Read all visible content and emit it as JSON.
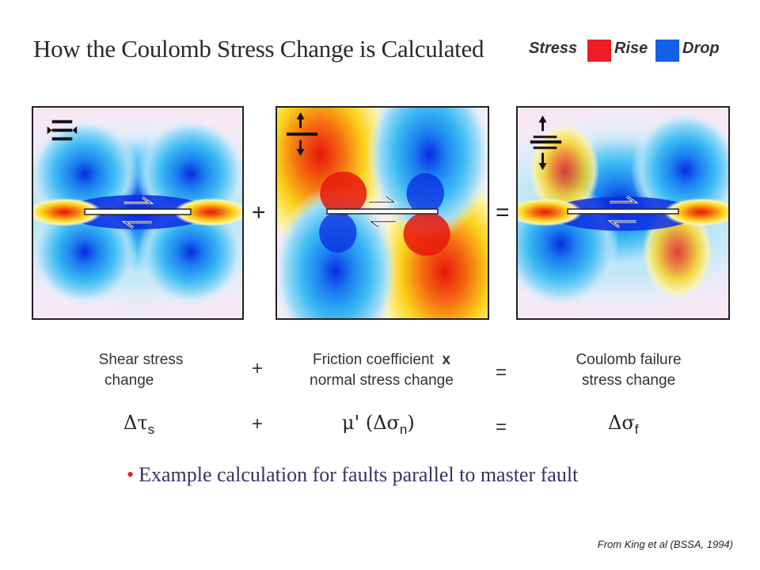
{
  "title": "How the Coulomb Stress Change is Calculated",
  "legend": {
    "label": "Stress",
    "rise_label": "Rise",
    "drop_label": "Drop",
    "rise_color": "#ee1c24",
    "drop_color": "#1460e8"
  },
  "panels": {
    "shear": {
      "icon": "right-lateral-strike-slip-icon"
    },
    "normal": {
      "icon": "normal-opening-arrows-icon"
    },
    "coulomb": {
      "icon": "combined-slip-arrows-icon"
    }
  },
  "operators": {
    "plus": "+",
    "equals": "="
  },
  "descriptions": {
    "shear_line1": "Shear stress",
    "shear_line2": "change",
    "friction_line1": "Friction coefficient",
    "friction_times": "x",
    "friction_line2": "normal stress change",
    "coulomb_line1": "Coulomb failure",
    "coulomb_line2": "stress change"
  },
  "equation": {
    "shear_symbol": "Δτ",
    "shear_sub": "s",
    "mu": "μ'",
    "normal_open": "(Δσ",
    "normal_sub": "n",
    "normal_close": ")",
    "coulomb_symbol": "Δσ",
    "coulomb_sub": "f"
  },
  "bullet": "Example calculation for faults parallel to master fault",
  "credit": "From King et al (BSSA, 1994)"
}
